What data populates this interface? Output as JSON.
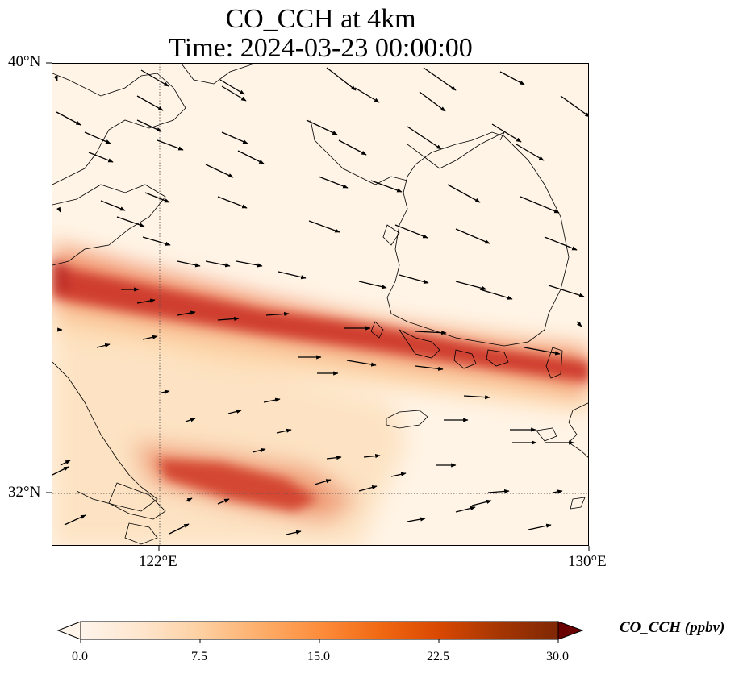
{
  "title": {
    "line1": "CO_CCH at 4km",
    "line2": "Time: 2024-03-23 00:00:00"
  },
  "axes": {
    "lat_labels": [
      "40°N",
      "32°N"
    ],
    "lon_labels": [
      "122°E",
      "130°E"
    ]
  },
  "colorbar": {
    "label": "CO_CCH (ppbv)",
    "ticks": [
      "0.0",
      "7.5",
      "15.0",
      "22.5",
      "30.0"
    ],
    "range": [
      0,
      30
    ],
    "colormap": [
      "#fff5eb",
      "#fee6ce",
      "#fdd0a2",
      "#fdae6b",
      "#fd8d3c",
      "#f16913",
      "#d94801",
      "#a63603",
      "#7f2704"
    ],
    "extend": "both"
  },
  "map": {
    "lon_range": [
      120,
      130
    ],
    "lat_range": [
      31,
      40
    ],
    "gridlines": {
      "lon": 122,
      "lat": 32,
      "style": "dotted"
    },
    "coastline_color": "#000000"
  },
  "colors": {
    "plume_core": "#c4302a",
    "plume_mid": "#e8654a",
    "background": "#fff4e6",
    "vectors": "#000000"
  }
}
